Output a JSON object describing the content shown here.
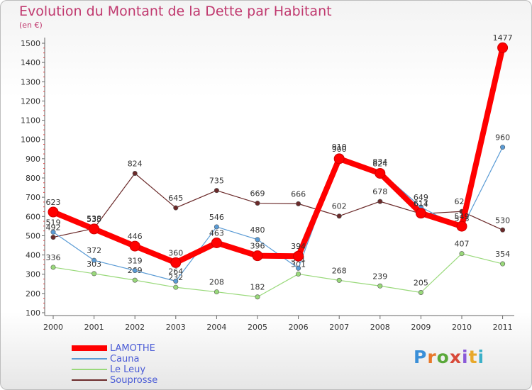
{
  "title": "Evolution du Montant de la Dette par Habitant",
  "unit": "(en €)",
  "brand": {
    "text": "Proxiti",
    "letters": [
      "P",
      "r",
      "o",
      "x",
      "i",
      "t",
      "i"
    ],
    "colors": [
      "#3a8fd8",
      "#e8782a",
      "#5aa83a",
      "#d84a3a",
      "#8a5ad8",
      "#e8a82a",
      "#3ab0c8"
    ]
  },
  "chart_data": {
    "type": "line",
    "x": [
      "2000",
      "2001",
      "2002",
      "2003",
      "2004",
      "2005",
      "2006",
      "2007",
      "2008",
      "2009",
      "2010",
      "2011"
    ],
    "ylim": [
      100,
      1500
    ],
    "yticks": [
      100,
      200,
      300,
      400,
      500,
      600,
      700,
      800,
      900,
      1000,
      1100,
      1200,
      1300,
      1400,
      1500
    ],
    "grid": false,
    "legend_position": "bottom-left",
    "series": [
      {
        "name": "Souprosse",
        "color": "#6b2a2a",
        "values": [
          492,
          538,
          824,
          645,
          735,
          669,
          666,
          602,
          678,
          614,
          626,
          530
        ]
      },
      {
        "name": "Le Leuy",
        "color": "#99d97a",
        "values": [
          336,
          303,
          269,
          232,
          208,
          182,
          301,
          268,
          239,
          205,
          407,
          354
        ]
      },
      {
        "name": "Cauna",
        "color": "#5a9bd5",
        "values": [
          519,
          372,
          319,
          264,
          546,
          480,
          331,
          910,
          834,
          649,
          538,
          960
        ]
      },
      {
        "name": "LAMOTHE",
        "color": "#ff0000",
        "values": [
          623,
          535,
          446,
          360,
          463,
          396,
          394,
          900,
          824,
          617,
          549,
          1477
        ]
      }
    ]
  }
}
